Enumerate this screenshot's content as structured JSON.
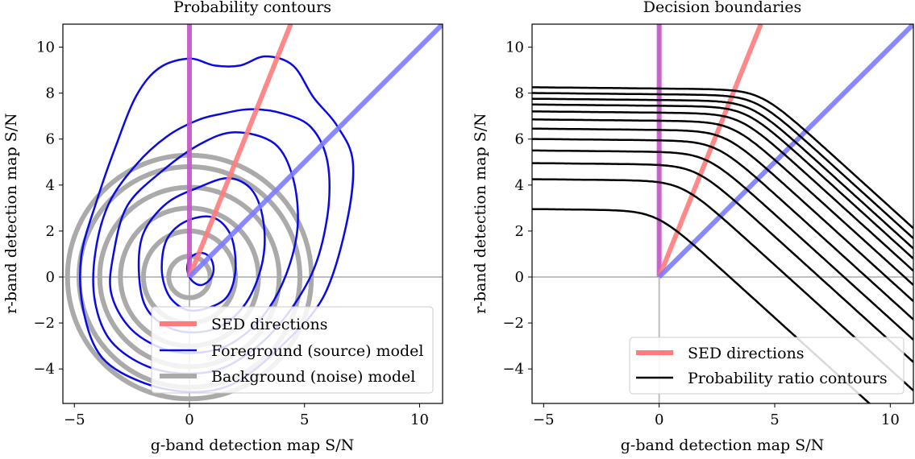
{
  "chart_data": [
    {
      "type": "line",
      "title": "Probability contours",
      "xlabel": "g-band detection map S/N",
      "ylabel": "r-band detection map S/N",
      "xlim": [
        -5.5,
        11
      ],
      "ylim": [
        -5.5,
        11
      ],
      "xticks": [
        -5,
        0,
        5,
        10
      ],
      "xtick_labels": [
        "−5",
        "0",
        "5",
        "10"
      ],
      "yticks": [
        -4,
        -2,
        0,
        2,
        4,
        6,
        8,
        10
      ],
      "ytick_labels": [
        "−4",
        "−2",
        "0",
        "2",
        "4",
        "6",
        "8",
        "10"
      ],
      "reference_lines": {
        "x": 0,
        "y": 0,
        "color": "#bdbdbd"
      },
      "sed_directions": [
        {
          "name": "vertical",
          "x": [
            0,
            0
          ],
          "y": [
            0,
            11
          ],
          "color": "#c455c8"
        },
        {
          "name": "steep",
          "x": [
            0,
            4.4
          ],
          "y": [
            0,
            11
          ],
          "color": "#ff7b7b"
        },
        {
          "name": "diagonal",
          "x": [
            0,
            11
          ],
          "y": [
            0,
            11
          ],
          "color": "#7b7bff"
        }
      ],
      "background_model": {
        "color": "#aaaaaa",
        "radii": [
          0.9,
          2.0,
          3.0,
          3.9,
          4.8,
          5.3
        ]
      },
      "foreground_model": {
        "color": "#0a0ae6",
        "contours": [
          [
            [
              0.5,
              -0.35
            ],
            [
              0.9,
              -0.1
            ],
            [
              1.05,
              0.35
            ],
            [
              0.9,
              0.85
            ],
            [
              0.5,
              1.05
            ],
            [
              0.05,
              0.85
            ],
            [
              -0.1,
              0.35
            ],
            [
              0.1,
              -0.15
            ]
          ],
          [
            [
              0.6,
              -1.4
            ],
            [
              1.6,
              -0.9
            ],
            [
              2.0,
              0.3
            ],
            [
              1.8,
              1.8
            ],
            [
              1.0,
              2.6
            ],
            [
              -0.2,
              2.4
            ],
            [
              -1.0,
              1.6
            ],
            [
              -1.2,
              0.3
            ],
            [
              -0.9,
              -0.8
            ],
            [
              -0.2,
              -1.4
            ]
          ],
          [
            [
              0.4,
              -2.4
            ],
            [
              1.6,
              -2.0
            ],
            [
              2.6,
              -0.9
            ],
            [
              3.2,
              0.8
            ],
            [
              3.2,
              2.5
            ],
            [
              2.7,
              3.8
            ],
            [
              1.7,
              4.3
            ],
            [
              0.4,
              3.9
            ],
            [
              -1.0,
              3.2
            ],
            [
              -2.0,
              1.9
            ],
            [
              -2.2,
              0.3
            ],
            [
              -1.9,
              -1.3
            ],
            [
              -0.9,
              -2.2
            ]
          ],
          [
            [
              0.3,
              -3.3
            ],
            [
              1.8,
              -2.9
            ],
            [
              3.2,
              -1.7
            ],
            [
              4.2,
              0.1
            ],
            [
              4.7,
              2.2
            ],
            [
              4.5,
              4.3
            ],
            [
              3.7,
              5.8
            ],
            [
              2.0,
              6.3
            ],
            [
              0.5,
              5.8
            ],
            [
              -1.2,
              4.6
            ],
            [
              -2.7,
              3.1
            ],
            [
              -3.3,
              1.0
            ],
            [
              -3.4,
              -0.7
            ],
            [
              -2.6,
              -2.2
            ],
            [
              -1.2,
              -3.1
            ]
          ],
          [
            [
              0.1,
              -4.2
            ],
            [
              1.8,
              -3.8
            ],
            [
              3.7,
              -2.3
            ],
            [
              5.3,
              0.1
            ],
            [
              6.0,
              2.7
            ],
            [
              6.0,
              5.0
            ],
            [
              5.3,
              6.5
            ],
            [
              4.1,
              7.1
            ],
            [
              2.7,
              7.3
            ],
            [
              1.4,
              7.1
            ],
            [
              0.3,
              6.8
            ],
            [
              -1.0,
              6.1
            ],
            [
              -2.3,
              4.9
            ],
            [
              -3.5,
              3.2
            ],
            [
              -4.1,
              1.0
            ],
            [
              -4.1,
              -1.1
            ],
            [
              -3.4,
              -2.8
            ],
            [
              -1.8,
              -3.9
            ]
          ],
          [
            [
              0.1,
              -5.0
            ],
            [
              2.0,
              -4.6
            ],
            [
              4.0,
              -3.0
            ],
            [
              5.8,
              -0.9
            ],
            [
              6.8,
              2.2
            ],
            [
              7.1,
              5.0
            ],
            [
              6.4,
              6.6
            ],
            [
              5.4,
              7.8
            ],
            [
              4.5,
              9.2
            ],
            [
              3.3,
              9.6
            ],
            [
              2.2,
              9.2
            ],
            [
              1.1,
              9.2
            ],
            [
              0.0,
              9.5
            ],
            [
              -1.3,
              9.1
            ],
            [
              -2.3,
              7.9
            ],
            [
              -3.2,
              5.7
            ],
            [
              -4.0,
              3.4
            ],
            [
              -4.7,
              0.9
            ],
            [
              -4.6,
              -1.5
            ],
            [
              -3.8,
              -3.5
            ],
            [
              -2.0,
              -4.6
            ]
          ]
        ]
      },
      "legend": {
        "position": "lower-right",
        "entries": [
          {
            "label": "SED directions",
            "color": "#ff7b7b"
          },
          {
            "label": "Foreground (source) model",
            "color": "#0a0ae6"
          },
          {
            "label": "Background (noise) model",
            "color": "#aaaaaa"
          }
        ]
      }
    },
    {
      "type": "line",
      "title": "Decision boundaries",
      "xlabel": "g-band detection map S/N",
      "ylabel": "r-band detection map S/N",
      "xlim": [
        -5.5,
        11
      ],
      "ylim": [
        -5.5,
        11
      ],
      "xticks": [
        -5,
        0,
        5,
        10
      ],
      "xtick_labels": [
        "−5",
        "0",
        "5",
        "10"
      ],
      "yticks": [
        -4,
        -2,
        0,
        2,
        4,
        6,
        8,
        10
      ],
      "ytick_labels": [
        "−4",
        "−2",
        "0",
        "2",
        "4",
        "6",
        "8",
        "10"
      ],
      "reference_lines": {
        "x": 0,
        "y": 0,
        "color": "#bdbdbd"
      },
      "sed_directions": [
        {
          "name": "vertical",
          "x": [
            0,
            0
          ],
          "y": [
            0,
            11
          ],
          "color": "#c455c8"
        },
        {
          "name": "steep",
          "x": [
            0,
            4.4
          ],
          "y": [
            0,
            11
          ],
          "color": "#ff7b7b"
        },
        {
          "name": "diagonal",
          "x": [
            0,
            11
          ],
          "y": [
            0,
            11
          ],
          "color": "#7b7bff"
        }
      ],
      "probability_ratio_contours": {
        "color": "#000000",
        "plateau_levels": [
          2.9,
          4.2,
          4.9,
          5.45,
          5.95,
          6.4,
          6.8,
          7.15,
          7.45,
          7.7,
          7.95,
          8.2
        ]
      },
      "legend": {
        "position": "lower-right",
        "entries": [
          {
            "label": "SED directions",
            "color": "#ff7b7b"
          },
          {
            "label": "Probability ratio contours",
            "color": "#000000"
          }
        ]
      }
    }
  ]
}
